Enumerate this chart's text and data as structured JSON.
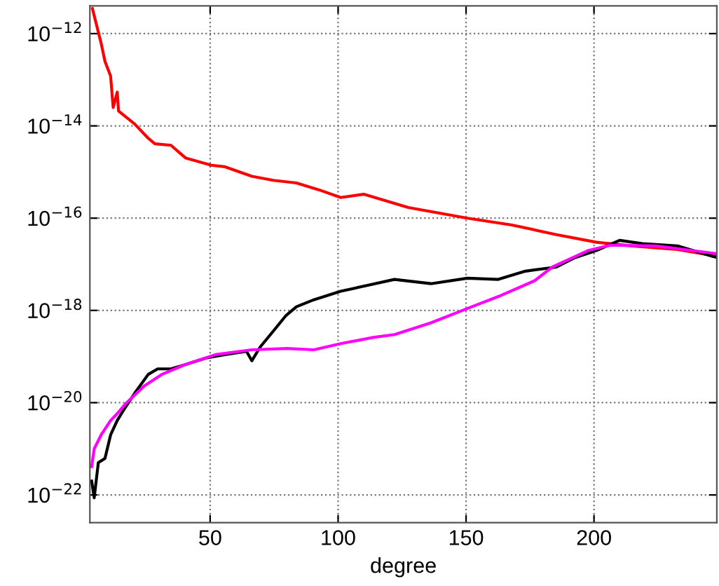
{
  "chart_data": {
    "type": "line",
    "xlabel": "degree",
    "log": "y",
    "grid": true,
    "line_style": "solid",
    "marker": "none",
    "xlim": [
      3,
      248
    ],
    "xticks": [
      50,
      100,
      150,
      200
    ],
    "ylim": [
      2.5e-23,
      4e-12
    ],
    "yticks": [
      {
        "value": 1e-22,
        "label": "10$^{−22}$"
      },
      {
        "value": 1e-20,
        "label": "10$^{−20}$"
      },
      {
        "value": 1e-18,
        "label": "10$^{−18}$"
      },
      {
        "value": 1e-16,
        "label": "10$^{−16}$"
      },
      {
        "value": 1e-14,
        "label": "10$^{−14}$"
      },
      {
        "value": 1e-12,
        "label": "10$^{−12}$"
      }
    ],
    "series": [
      {
        "color": "#ff0000",
        "x": [
          4,
          7.4,
          8.9,
          11.1,
          12.1,
          13.7,
          14.2,
          20.5,
          25.8,
          28.4,
          34.7,
          40.5,
          50.5,
          55.8,
          66.3,
          74.7,
          83.7,
          92.6,
          101,
          110,
          127.4,
          150.5,
          167.9,
          185.3,
          201,
          215,
          232.6,
          248
        ],
        "values": [
          3.5e-12,
          6.2e-13,
          2.5e-13,
          1.2e-13,
          2.5e-14,
          5.4e-14,
          2.1e-14,
          1.1e-14,
          5.4e-15,
          4.1e-15,
          3.8e-15,
          2e-15,
          1.4e-15,
          1.3e-15,
          8.1e-16,
          6.6e-16,
          5.8e-16,
          4.1e-16,
          2.8e-16,
          3.3e-16,
          1.7e-16,
          1e-16,
          7.1e-17,
          4.4e-17,
          3e-17,
          2.5e-17,
          2.1e-17,
          1.5e-17
        ]
      },
      {
        "color": "#000000",
        "x": [
          3.7,
          4.7,
          6.3,
          8.9,
          11.1,
          13.7,
          16.3,
          20.5,
          25.8,
          29.5,
          34.7,
          40,
          48.4,
          55.8,
          64.2,
          66.3,
          69.5,
          74.2,
          79.5,
          83.7,
          90.5,
          101,
          111.6,
          122,
          136.3,
          150.5,
          162.6,
          173.2,
          185.3,
          192.6,
          201,
          210,
          219,
          232.6,
          248
        ],
        "values": [
          2e-22,
          8.7e-23,
          5e-22,
          6.2e-22,
          2e-21,
          4.1e-21,
          7.1e-21,
          1.6e-20,
          4.1e-20,
          5.4e-20,
          5.4e-20,
          6.6e-20,
          9.3e-20,
          1.1e-19,
          1.3e-19,
          8.1e-20,
          1.6e-19,
          3.3e-19,
          7.6e-19,
          1.2e-18,
          1.7e-18,
          2.6e-18,
          3.5e-18,
          4.7e-18,
          3.8e-18,
          5e-18,
          4.7e-18,
          7.1e-18,
          8.7e-18,
          1.4e-17,
          2e-17,
          3.3e-17,
          2.8e-17,
          2.5e-17,
          1.4e-17
        ]
      },
      {
        "color": "#ff00ff",
        "x": [
          3.7,
          4.7,
          7.4,
          11.1,
          13.7,
          16.8,
          24.2,
          31.1,
          40,
          52.1,
          66.3,
          80,
          90.5,
          101,
          113.7,
          122.1,
          136.3,
          150.5,
          162.6,
          176.8,
          183.7,
          197.9,
          206.3,
          224.2,
          248
        ],
        "values": [
          4.1e-22,
          1e-21,
          2e-21,
          4.1e-21,
          5.8e-21,
          9.3e-21,
          2.3e-20,
          4.1e-20,
          6.6e-20,
          1.1e-19,
          1.4e-19,
          1.5e-19,
          1.4e-19,
          1.9e-19,
          2.6e-19,
          3e-19,
          5.4e-19,
          1.1e-18,
          2e-18,
          4.4e-18,
          8.7e-18,
          2e-17,
          2.6e-17,
          2.5e-17,
          1.7e-17
        ]
      }
    ]
  }
}
